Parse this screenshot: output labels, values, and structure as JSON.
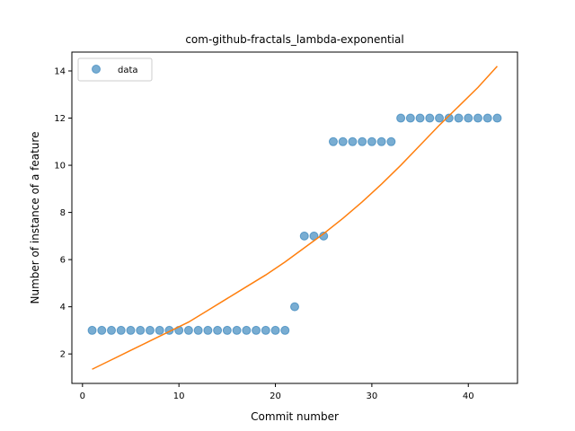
{
  "chart_data": {
    "type": "scatter",
    "title": "com-github-fractals_lambda-exponential",
    "xlabel": "Commit number",
    "ylabel": "Number of instance of a feature",
    "xlim": [
      -1.1,
      45.1
    ],
    "ylim": [
      0.75,
      14.8
    ],
    "xticks": [
      0,
      10,
      20,
      30,
      40
    ],
    "yticks": [
      2,
      4,
      6,
      8,
      10,
      12,
      14
    ],
    "grid": false,
    "legend": {
      "placement": "top-left",
      "entries": [
        "data"
      ]
    },
    "series": [
      {
        "name": "data",
        "kind": "scatter",
        "color": "#1f77b4",
        "x": [
          1,
          2,
          3,
          4,
          5,
          6,
          7,
          8,
          9,
          10,
          11,
          12,
          13,
          14,
          15,
          16,
          17,
          18,
          19,
          20,
          21,
          22,
          23,
          24,
          25,
          26,
          27,
          28,
          29,
          30,
          31,
          32,
          33,
          34,
          35,
          36,
          37,
          38,
          39,
          40,
          41,
          42,
          43
        ],
        "y": [
          3,
          3,
          3,
          3,
          3,
          3,
          3,
          3,
          3,
          3,
          3,
          3,
          3,
          3,
          3,
          3,
          3,
          3,
          3,
          3,
          3,
          4,
          7,
          7,
          7,
          11,
          11,
          11,
          11,
          11,
          11,
          11,
          12,
          12,
          12,
          12,
          12,
          12,
          12,
          12,
          12,
          12,
          12
        ]
      },
      {
        "kind": "line",
        "color": "#ff7f0e",
        "x": [
          1,
          3,
          5,
          7,
          9,
          11,
          13,
          15,
          17,
          19,
          21,
          23,
          25,
          27,
          29,
          31,
          33,
          35,
          37,
          39,
          41,
          43
        ],
        "y": [
          1.35,
          1.75,
          2.15,
          2.55,
          2.95,
          3.35,
          3.85,
          4.35,
          4.85,
          5.35,
          5.9,
          6.5,
          7.1,
          7.75,
          8.45,
          9.2,
          10.0,
          10.85,
          11.7,
          12.5,
          13.3,
          14.2
        ]
      }
    ]
  }
}
